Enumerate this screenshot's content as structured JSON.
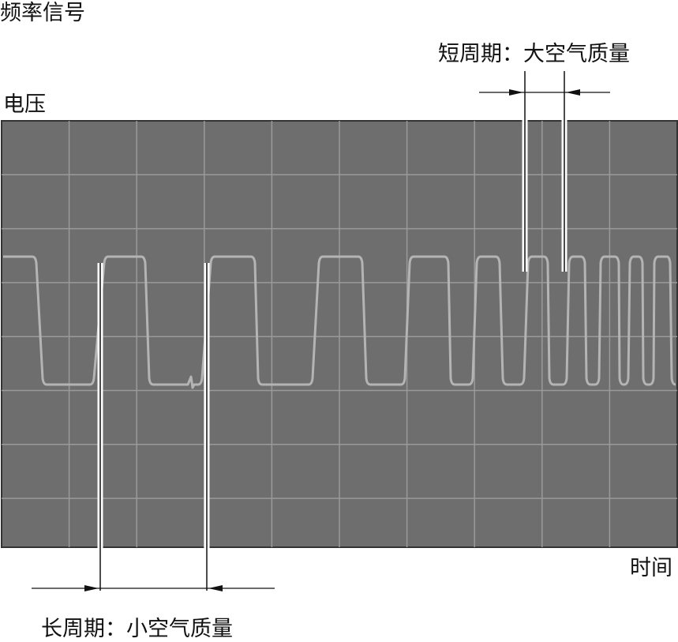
{
  "title": "频率信号",
  "y_axis_label": "电压",
  "x_axis_label": "时间",
  "annotation_short": "短周期：大空气质量",
  "annotation_long": "长周期：小空气质量",
  "colors": {
    "screen": "#6e6e6e",
    "grid": "#9a9a9a",
    "trace": "#b4b4b4",
    "marker": "#ffffff"
  }
}
